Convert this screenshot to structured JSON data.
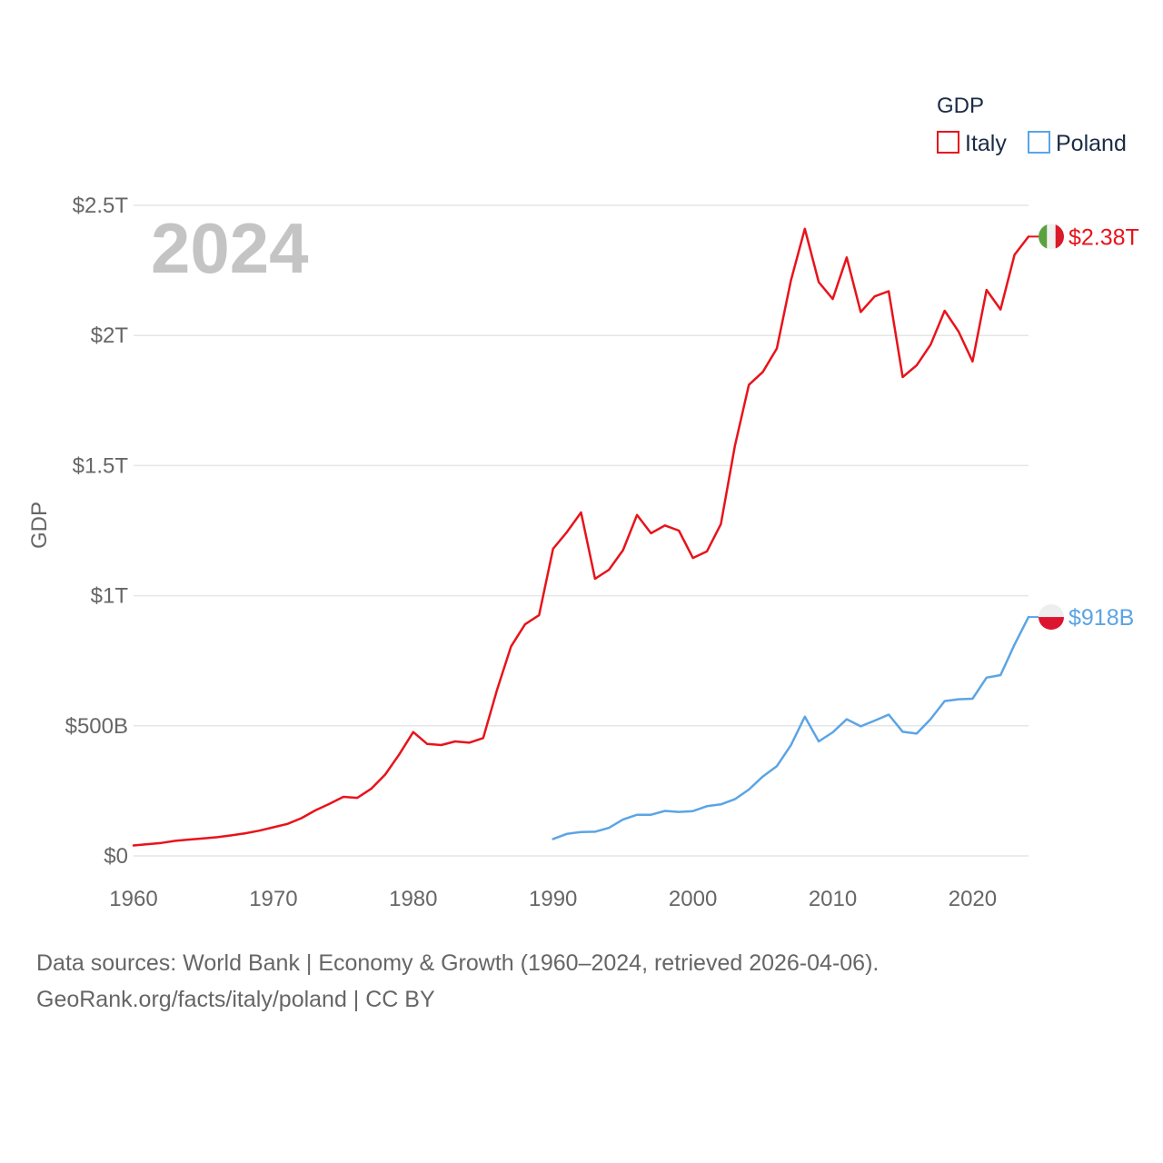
{
  "chart_data": {
    "type": "line",
    "year_label": "2024",
    "ylabel": "GDP",
    "xlim": [
      1960,
      2024
    ],
    "ylim": [
      0,
      2500000000000
    ],
    "x_ticks": [
      1960,
      1970,
      1980,
      1990,
      2000,
      2010,
      2020
    ],
    "x_tick_labels": [
      "1960",
      "1970",
      "1980",
      "1990",
      "2000",
      "2010",
      "2020"
    ],
    "y_ticks": [
      0,
      500000000000,
      1000000000000,
      1500000000000,
      2000000000000,
      2500000000000
    ],
    "y_tick_labels": [
      "$0",
      "$500B",
      "$1T",
      "$1.5T",
      "$2T",
      "$2.5T"
    ],
    "legend": {
      "title": "GDP",
      "position": "top-right"
    },
    "series": [
      {
        "name": "Italy",
        "color": "#e8131b",
        "end_label": "$2.38T",
        "flag": "italy-flag",
        "x": [
          1960,
          1961,
          1962,
          1963,
          1964,
          1965,
          1966,
          1967,
          1968,
          1969,
          1970,
          1971,
          1972,
          1973,
          1974,
          1975,
          1976,
          1977,
          1978,
          1979,
          1980,
          1981,
          1982,
          1983,
          1984,
          1985,
          1986,
          1987,
          1988,
          1989,
          1990,
          1991,
          1992,
          1993,
          1994,
          1995,
          1996,
          1997,
          1998,
          1999,
          2000,
          2001,
          2002,
          2003,
          2004,
          2005,
          2006,
          2007,
          2008,
          2009,
          2010,
          2011,
          2012,
          2013,
          2014,
          2015,
          2016,
          2017,
          2018,
          2019,
          2020,
          2021,
          2022,
          2023,
          2024
        ],
        "values": [
          40000000000.0,
          45000000000.0,
          50000000000.0,
          58000000000.0,
          63000000000.0,
          67000000000.0,
          72000000000.0,
          79000000000.0,
          87000000000.0,
          97000000000.0,
          110000000000.0,
          123000000000.0,
          145000000000.0,
          175000000000.0,
          200000000000.0,
          227000000000.0,
          223000000000.0,
          258000000000.0,
          313000000000.0,
          390000000000.0,
          476000000000.0,
          430000000000.0,
          426000000000.0,
          440000000000.0,
          435000000000.0,
          453000000000.0,
          640000000000.0,
          805000000000.0,
          890000000000.0,
          925000000000.0,
          1180000000000.0,
          1245000000000.0,
          1320000000000.0,
          1065000000000.0,
          1100000000000.0,
          1175000000000.0,
          1310000000000.0,
          1240000000000.0,
          1270000000000.0,
          1250000000000.0,
          1145000000000.0,
          1170000000000.0,
          1275000000000.0,
          1575000000000.0,
          1810000000000.0,
          1860000000000.0,
          1950000000000.0,
          2210000000000.0,
          2410000000000.0,
          2205000000000.0,
          2140000000000.0,
          2300000000000.0,
          2090000000000.0,
          2150000000000.0,
          2170000000000.0,
          1840000000000.0,
          1885000000000.0,
          1965000000000.0,
          2095000000000.0,
          2015000000000.0,
          1900000000000.0,
          2175000000000.0,
          2100000000000.0,
          2310000000000.0,
          2380000000000.0
        ]
      },
      {
        "name": "Poland",
        "color": "#5ba4e5",
        "end_label": "$918B",
        "flag": "poland-flag",
        "x": [
          1990,
          1991,
          1992,
          1993,
          1994,
          1995,
          1996,
          1997,
          1998,
          1999,
          2000,
          2001,
          2002,
          2003,
          2004,
          2005,
          2006,
          2007,
          2008,
          2009,
          2010,
          2011,
          2012,
          2013,
          2014,
          2015,
          2016,
          2017,
          2018,
          2019,
          2020,
          2021,
          2022,
          2023,
          2024
        ],
        "values": [
          65000000000.0,
          85000000000.0,
          92000000000.0,
          93000000000.0,
          108000000000.0,
          140000000000.0,
          158000000000.0,
          158000000000.0,
          173000000000.0,
          169000000000.0,
          172000000000.0,
          191000000000.0,
          198000000000.0,
          218000000000.0,
          255000000000.0,
          305000000000.0,
          345000000000.0,
          425000000000.0,
          535000000000.0,
          440000000000.0,
          475000000000.0,
          525000000000.0,
          498000000000.0,
          520000000000.0,
          543000000000.0,
          477000000000.0,
          470000000000.0,
          526000000000.0,
          595000000000.0,
          602000000000.0,
          604000000000.0,
          685000000000.0,
          695000000000.0,
          812000000000.0,
          918000000000.0
        ]
      }
    ]
  },
  "source": {
    "line1": "Data sources: World Bank | Economy & Growth (1960–2024, retrieved 2026-04-06).",
    "line2": "GeoRank.org/facts/italy/poland | CC BY"
  }
}
